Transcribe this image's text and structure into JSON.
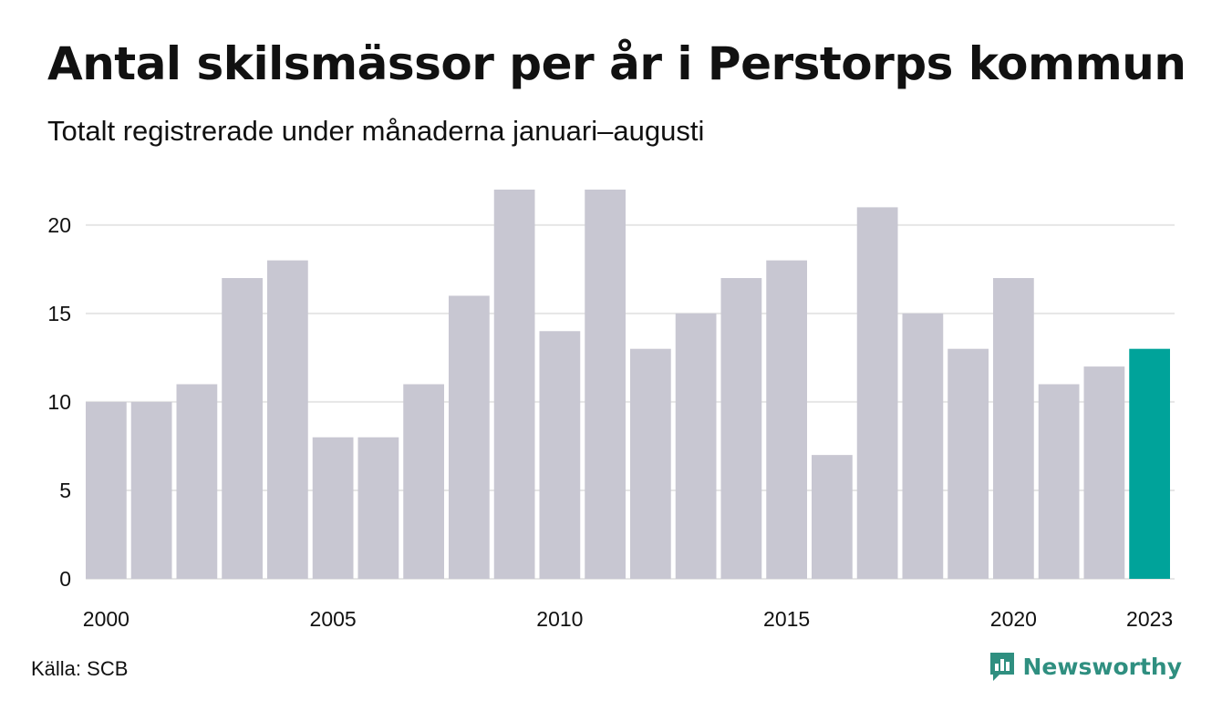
{
  "chart_data": {
    "type": "bar",
    "title": "Antal skilsmässor per år i Perstorps kommun",
    "subtitle": "Totalt registrerade under månaderna januari–augusti",
    "categories": [
      "2000",
      "2001",
      "2002",
      "2003",
      "2004",
      "2005",
      "2006",
      "2007",
      "2008",
      "2009",
      "2010",
      "2011",
      "2012",
      "2013",
      "2014",
      "2015",
      "2016",
      "2017",
      "2018",
      "2019",
      "2020",
      "2021",
      "2022",
      "2023"
    ],
    "values": [
      10,
      10,
      11,
      17,
      18,
      8,
      8,
      11,
      16,
      22,
      14,
      22,
      13,
      15,
      17,
      18,
      7,
      21,
      15,
      13,
      17,
      11,
      12,
      13
    ],
    "x_tick_labels": [
      "2000",
      "2005",
      "2010",
      "2015",
      "2020",
      "2023"
    ],
    "y_ticks": [
      0,
      5,
      10,
      15,
      20
    ],
    "ylim": [
      0,
      22
    ],
    "grid": true,
    "colors": {
      "default": "#c8c7d2",
      "highlight": "#00a39a",
      "grid": "#e6e6e6",
      "highlight_category": "2023"
    }
  },
  "footer": {
    "source": "Källa: SCB",
    "brand": "Newsworthy",
    "brand_color": "#2f8f80"
  }
}
